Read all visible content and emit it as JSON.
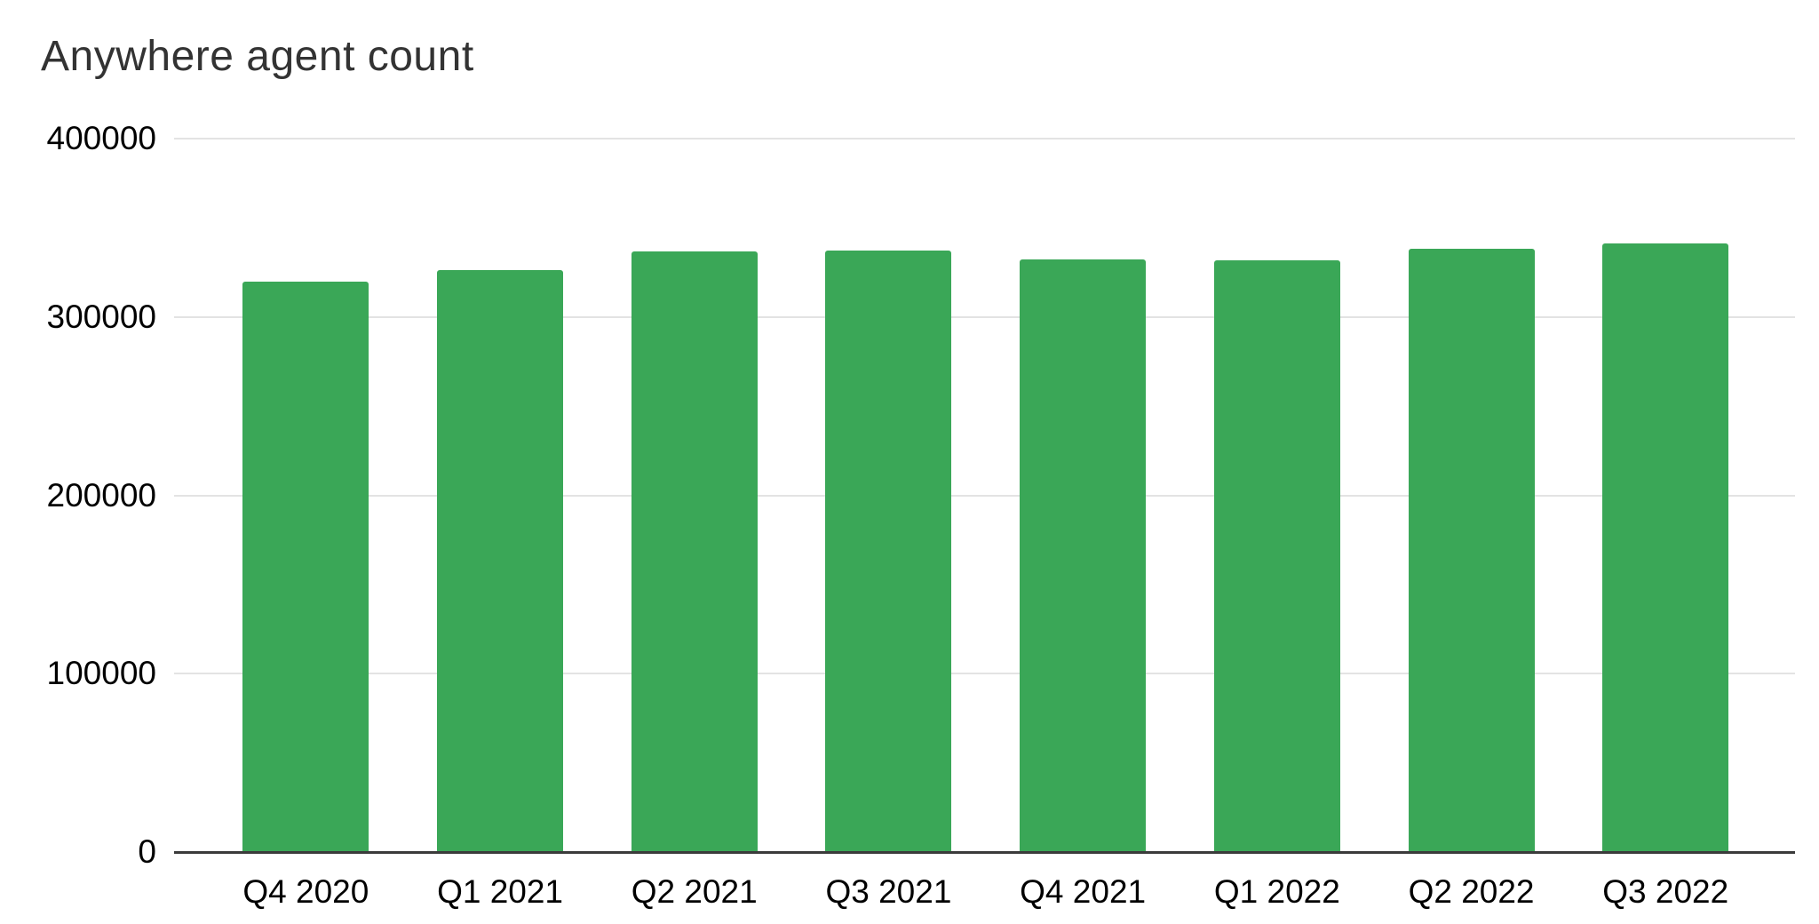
{
  "chart_data": {
    "type": "bar",
    "title": "Anywhere agent count",
    "categories": [
      "Q4 2020",
      "Q1 2021",
      "Q2 2021",
      "Q3 2021",
      "Q4 2021",
      "Q1 2022",
      "Q2 2022",
      "Q3 2022"
    ],
    "values": [
      320000,
      326500,
      336500,
      337000,
      332500,
      332000,
      338000,
      341000
    ],
    "xlabel": "",
    "ylabel": "",
    "ylim": [
      0,
      400000
    ],
    "ytick_interval": 100000,
    "ytick_labels": [
      "400000",
      "300000",
      "200000",
      "100000",
      "0"
    ],
    "grid": true,
    "legend": "none",
    "colors": {
      "bar": "#3aa757",
      "gridline": "#e3e3e3",
      "axis_line": "#3b3b3b",
      "tick_label": "#000000",
      "title": "#333333",
      "background": "#ffffff"
    }
  }
}
